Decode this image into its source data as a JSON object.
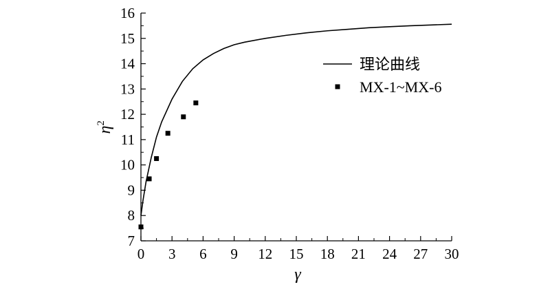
{
  "chart_data": {
    "type": "line+scatter",
    "xlabel": "γ",
    "ylabel": "η",
    "ylabel_superscript": "2",
    "xlim": [
      0,
      30
    ],
    "ylim": [
      7,
      16
    ],
    "xticks": [
      0,
      3,
      6,
      9,
      12,
      15,
      18,
      21,
      24,
      27,
      30
    ],
    "yticks": [
      7,
      8,
      9,
      10,
      11,
      12,
      13,
      14,
      15,
      16
    ],
    "grid": false,
    "legend_position": "right",
    "series": [
      {
        "name": "理论曲线",
        "kind": "line",
        "color": "#000000",
        "x": [
          0,
          0.2,
          0.5,
          1,
          1.5,
          2,
          3,
          4,
          5,
          6,
          7,
          8,
          9,
          10,
          12,
          14,
          16,
          18,
          20,
          22,
          24,
          26,
          28,
          30
        ],
        "y": [
          8.0,
          8.6,
          9.35,
          10.3,
          11.1,
          11.7,
          12.6,
          13.3,
          13.8,
          14.15,
          14.4,
          14.6,
          14.75,
          14.85,
          15.0,
          15.12,
          15.22,
          15.3,
          15.36,
          15.42,
          15.46,
          15.5,
          15.53,
          15.56
        ]
      },
      {
        "name": "MX-1~MX-6",
        "kind": "scatter",
        "marker": "square",
        "color": "#000000",
        "x": [
          0,
          0.8,
          1.5,
          2.6,
          4.1,
          5.3
        ],
        "y": [
          7.55,
          9.45,
          10.25,
          11.25,
          11.9,
          12.45
        ]
      }
    ]
  }
}
